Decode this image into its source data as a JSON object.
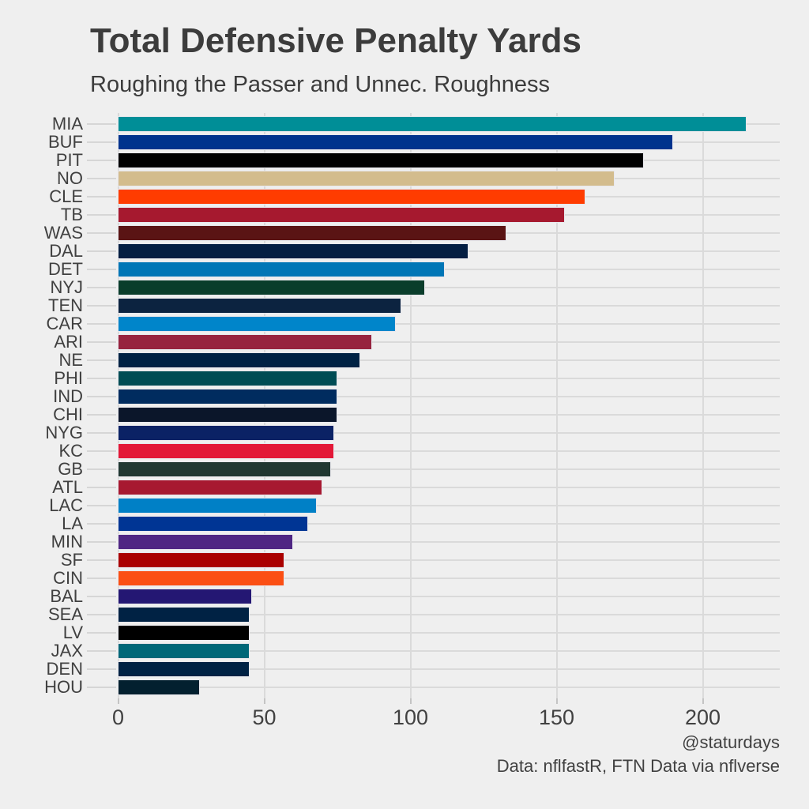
{
  "chart_data": {
    "type": "bar",
    "orientation": "horizontal",
    "title": "Total Defensive Penalty Yards",
    "subtitle": "Roughing the Passer and Unnec. Roughness",
    "caption": [
      "@staturdays",
      "Data: nflfastR, FTN Data via nflverse"
    ],
    "xlabel": "",
    "ylabel": "",
    "xlim": [
      0,
      226
    ],
    "x_ticks": [
      0,
      50,
      100,
      150,
      200
    ],
    "grid": true,
    "legend": false,
    "background": "#EFEFEF",
    "gridline_color": "#DADADA",
    "y_tick_color": "#D6D6D6",
    "x_tick_color": "#C4C4C4",
    "bar_stroke": "#E7E7EC",
    "text_color": "#3C3C3C",
    "categories": [
      "MIA",
      "BUF",
      "PIT",
      "NO",
      "CLE",
      "TB",
      "WAS",
      "DAL",
      "DET",
      "NYJ",
      "TEN",
      "CAR",
      "ARI",
      "NE",
      "PHI",
      "IND",
      "CHI",
      "NYG",
      "KC",
      "GB",
      "ATL",
      "LAC",
      "LA",
      "MIN",
      "SF",
      "CIN",
      "BAL",
      "SEA",
      "LV",
      "JAX",
      "DEN",
      "HOU"
    ],
    "values": [
      215,
      190,
      180,
      170,
      160,
      153,
      133,
      120,
      112,
      105,
      97,
      95,
      87,
      83,
      75,
      75,
      75,
      74,
      74,
      73,
      70,
      68,
      65,
      60,
      57,
      57,
      46,
      45,
      45,
      45,
      45,
      28
    ],
    "bar_colors": [
      "#008E97",
      "#00338D",
      "#000000",
      "#D3BC8D",
      "#FF3C00",
      "#A6192F",
      "#5A1414",
      "#041E42",
      "#0076B6",
      "#0A3D2B",
      "#0C2340",
      "#0085CA",
      "#97233F",
      "#002244",
      "#004C54",
      "#002C5F",
      "#0B162A",
      "#0B2265",
      "#E31837",
      "#203731",
      "#A71930",
      "#0080C6",
      "#003594",
      "#4F2683",
      "#AA0000",
      "#FB4F14",
      "#241773",
      "#002244",
      "#000000",
      "#006778",
      "#002244",
      "#03202F"
    ]
  }
}
